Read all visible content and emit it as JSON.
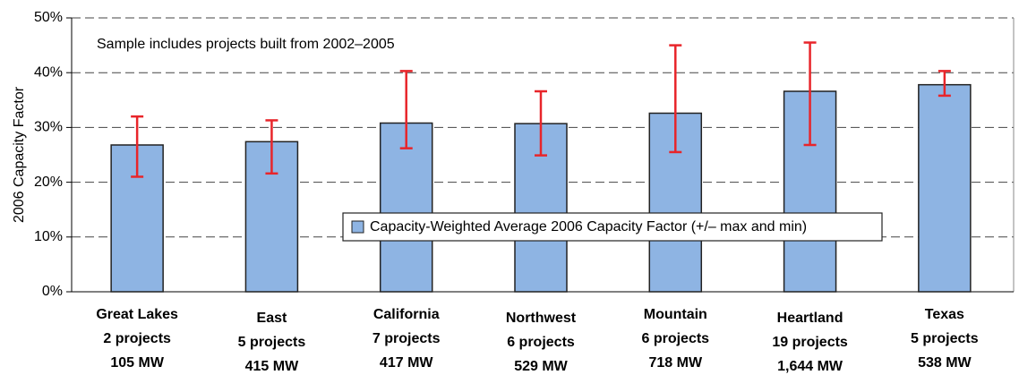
{
  "chart_data": {
    "type": "bar",
    "y_label": "2006 Capacity Factor",
    "annotation": "Sample includes projects built from 2002–2005",
    "categories": [
      [
        "Great Lakes",
        "2 projects",
        "105 MW"
      ],
      [
        "East",
        "5 projects",
        "415 MW"
      ],
      [
        "California",
        "7 projects",
        "417 MW"
      ],
      [
        "Northwest",
        "6 projects",
        "529 MW"
      ],
      [
        "Mountain",
        "6 projects",
        "718 MW"
      ],
      [
        "Heartland",
        "19 projects",
        "1,644 MW"
      ],
      [
        "Texas",
        "5 projects",
        "538 MW"
      ]
    ],
    "series": [
      {
        "name": "Capacity-Weighted Average 2006 Capacity Factor (+/– max and min)",
        "color": "#8eb4e3",
        "error_color": "#e8252a",
        "values": [
          26.8,
          27.4,
          30.8,
          30.7,
          32.6,
          36.6,
          37.8
        ],
        "max": [
          32,
          31.3,
          40.3,
          36.6,
          45,
          45.5,
          40.3
        ],
        "min": [
          21,
          21.6,
          26.2,
          24.9,
          25.5,
          26.8,
          35.8
        ]
      }
    ],
    "ylim": [
      0,
      50
    ],
    "yticks": [
      {
        "value": 0,
        "label": "0%"
      },
      {
        "value": 10,
        "label": "10%"
      },
      {
        "value": 20,
        "label": "20%"
      },
      {
        "value": 30,
        "label": "30%"
      },
      {
        "value": 40,
        "label": "40%"
      },
      {
        "value": 50,
        "label": "50%"
      }
    ],
    "grid": true
  }
}
